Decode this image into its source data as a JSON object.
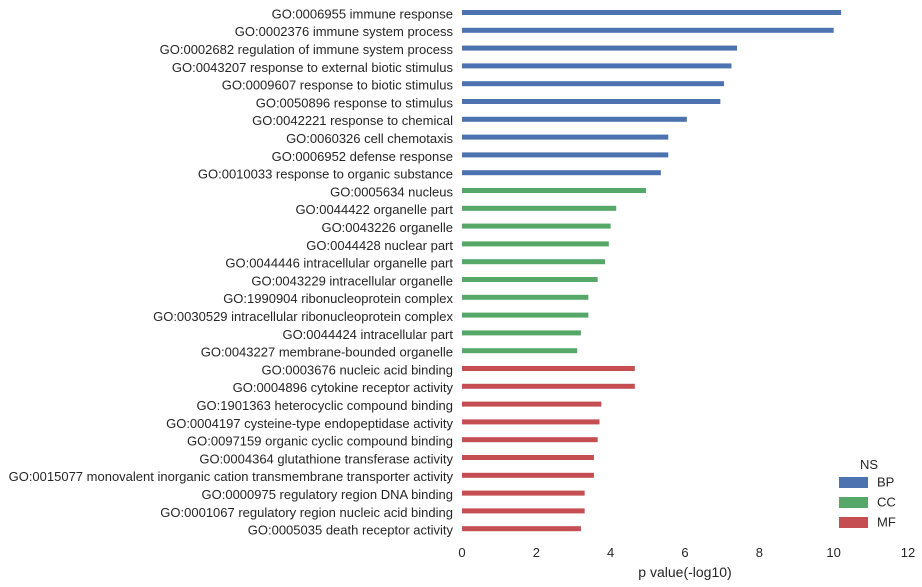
{
  "chart_data": {
    "type": "bar",
    "orientation": "horizontal",
    "title": "",
    "xlabel": "p value(-log10)",
    "ylabel": "",
    "xlim": [
      0,
      12
    ],
    "xticks": [
      0,
      2,
      4,
      6,
      8,
      10,
      12
    ],
    "grid": false,
    "legend": {
      "title": "NS",
      "placement": "bottom-right",
      "entries": [
        {
          "name": "BP",
          "color": "#4C72B0"
        },
        {
          "name": "CC",
          "color": "#55A868"
        },
        {
          "name": "MF",
          "color": "#C44E52"
        }
      ]
    },
    "categories": [
      "GO:0006955 immune response",
      "GO:0002376 immune system process",
      "GO:0002682 regulation of immune system process",
      "GO:0043207 response to external biotic stimulus",
      "GO:0009607 response to biotic stimulus",
      "GO:0050896 response to stimulus",
      "GO:0042221 response to chemical",
      "GO:0060326 cell chemotaxis",
      "GO:0006952 defense response",
      "GO:0010033 response to organic substance",
      "GO:0005634 nucleus",
      "GO:0044422 organelle part",
      "GO:0043226 organelle",
      "GO:0044428 nuclear part",
      "GO:0044446 intracellular organelle part",
      "GO:0043229 intracellular organelle",
      "GO:1990904 ribonucleoprotein complex",
      "GO:0030529 intracellular ribonucleoprotein complex",
      "GO:0044424 intracellular part",
      "GO:0043227 membrane-bounded organelle",
      "GO:0003676 nucleic acid binding",
      "GO:0004896 cytokine receptor activity",
      "GO:1901363 heterocyclic compound binding",
      "GO:0004197 cysteine-type endopeptidase activity",
      "GO:0097159 organic cyclic compound binding",
      "GO:0004364 glutathione transferase activity",
      "GO:0015077 monovalent inorganic cation transmembrane transporter activity",
      "GO:0000975 regulatory region DNA binding",
      "GO:0001067 regulatory region nucleic acid binding",
      "GO:0005035 death receptor activity"
    ],
    "values": [
      10.2,
      10.0,
      7.4,
      7.25,
      7.05,
      6.95,
      6.05,
      5.55,
      5.55,
      5.35,
      4.95,
      4.15,
      4.0,
      3.95,
      3.85,
      3.65,
      3.4,
      3.4,
      3.2,
      3.1,
      4.65,
      4.65,
      3.75,
      3.7,
      3.65,
      3.55,
      3.55,
      3.3,
      3.3,
      3.2
    ],
    "groups": [
      "BP",
      "BP",
      "BP",
      "BP",
      "BP",
      "BP",
      "BP",
      "BP",
      "BP",
      "BP",
      "CC",
      "CC",
      "CC",
      "CC",
      "CC",
      "CC",
      "CC",
      "CC",
      "CC",
      "CC",
      "MF",
      "MF",
      "MF",
      "MF",
      "MF",
      "MF",
      "MF",
      "MF",
      "MF",
      "MF"
    ]
  }
}
